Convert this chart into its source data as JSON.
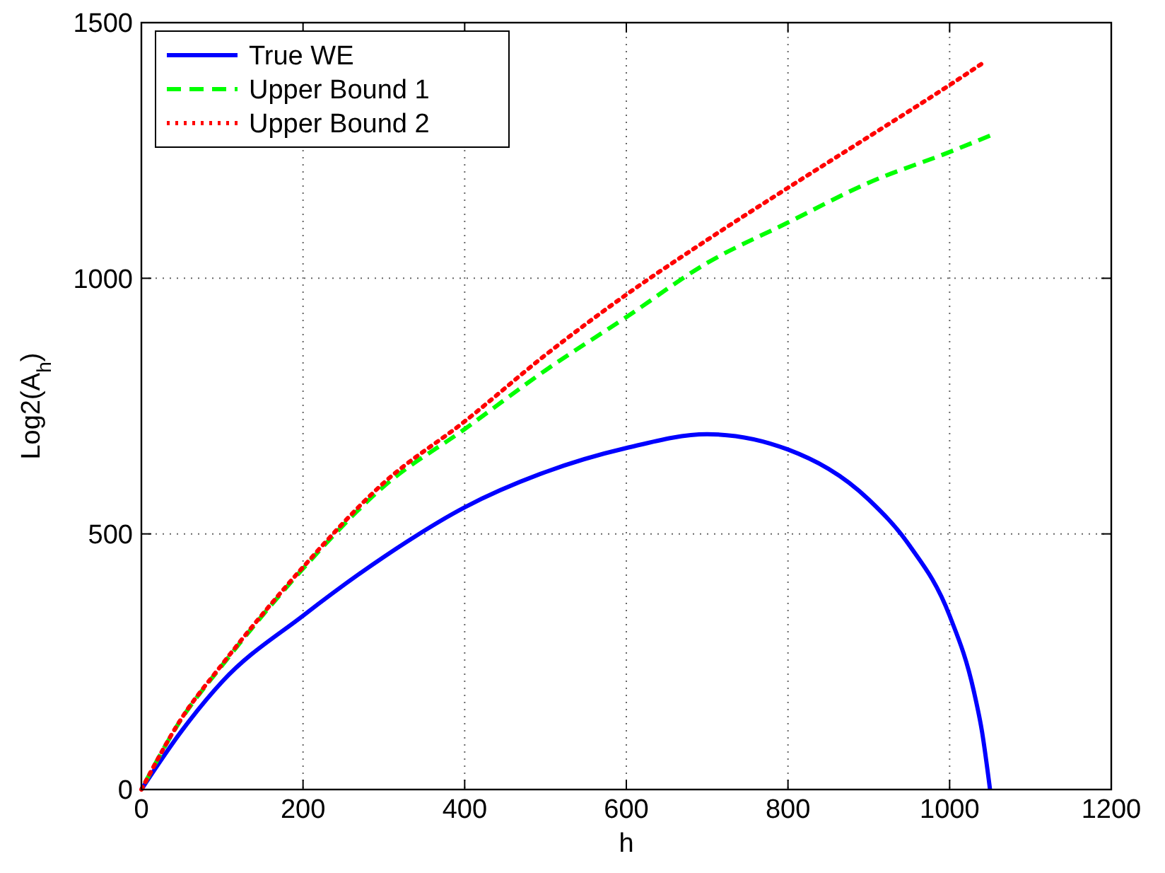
{
  "chart_data": {
    "type": "line",
    "xlabel": "h",
    "ylabel": "Log2(A$_{h}$)",
    "xlim": [
      0,
      1200
    ],
    "ylim": [
      0,
      1500
    ],
    "xticks": [
      0,
      200,
      400,
      600,
      800,
      1000,
      1200
    ],
    "yticks": [
      0,
      500,
      1000,
      1500
    ],
    "grid": true,
    "legend": "top left",
    "series": [
      {
        "name": "True WE",
        "color": "#0000ff",
        "line_style": "solid",
        "x": [
          0,
          50,
          100,
          200,
          300,
          400,
          500,
          600,
          700,
          800,
          900,
          950,
          1000,
          1030,
          1040,
          1050
        ],
        "values": [
          0,
          115,
          211,
          340,
          455,
          552,
          621,
          668,
          695,
          665,
          567,
          478,
          340,
          192,
          114,
          0
        ]
      },
      {
        "name": "Upper Bound 1",
        "color": "#00ff00",
        "line_style": "dashed",
        "x": [
          0,
          50,
          100,
          200,
          300,
          400,
          500,
          600,
          700,
          800,
          900,
          1000,
          1050
        ],
        "values": [
          0,
          139,
          243,
          432,
          593,
          705,
          820,
          924,
          1030,
          1109,
          1187,
          1247,
          1279
        ]
      },
      {
        "name": "Upper Bound 2",
        "color": "#ff0000",
        "line_style": "dotted",
        "x": [
          0,
          50,
          100,
          200,
          300,
          400,
          500,
          600,
          700,
          800,
          900,
          1000,
          1044
        ],
        "values": [
          0,
          140,
          245,
          435,
          600,
          720,
          850,
          968,
          1075,
          1177,
          1277,
          1378,
          1424
        ]
      }
    ]
  }
}
